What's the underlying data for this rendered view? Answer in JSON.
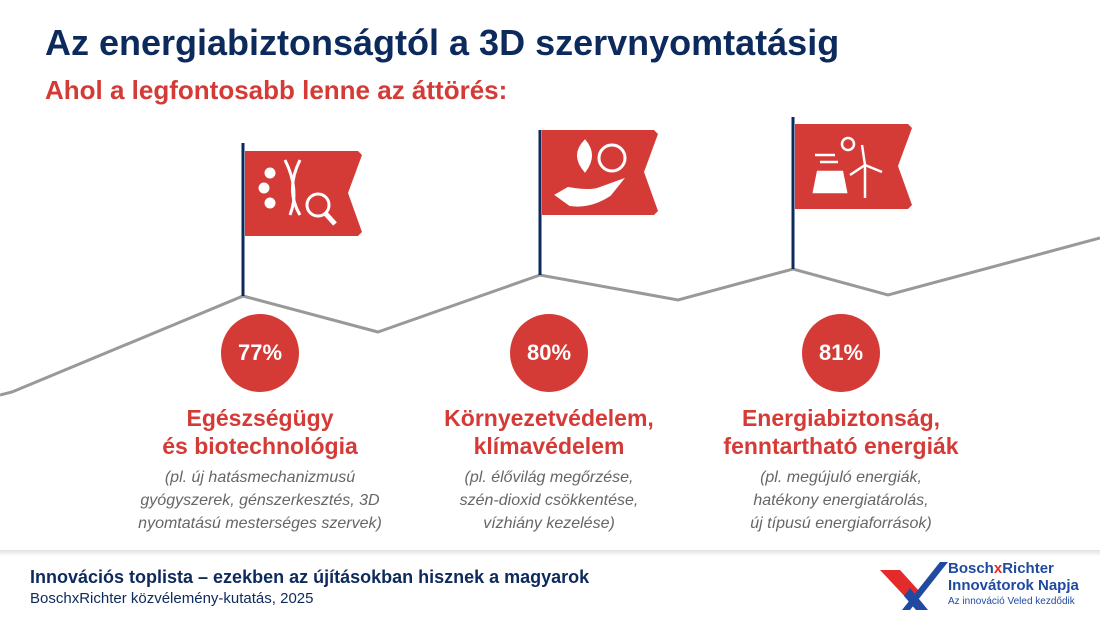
{
  "title": "Az energiabiztonságtól a 3D szervnyomtatásig",
  "subtitle": "Ahol a legfontosabb lenne az áttörés:",
  "items": [
    {
      "percent": "77%",
      "heading1": "Egészségügy",
      "heading2": "és biotechnológia",
      "desc": [
        "(pl. új hatásmechanizmusú",
        "gyógyszerek, génszerkesztés, 3D",
        "nyomtatású mesterséges szervek)"
      ],
      "icon": "dna-magnifier-icon"
    },
    {
      "percent": "80%",
      "heading1": "Környezetvédelem,",
      "heading2": "klímavédelem",
      "desc": [
        "(pl. élővilág megőrzése,",
        "szén-dioxid csökkentése,",
        "vízhiány kezelése)"
      ],
      "icon": "hand-leaf-globe-icon"
    },
    {
      "percent": "81%",
      "heading1": "Energiabiztonság,",
      "heading2": "fenntartható energiák",
      "desc": [
        "(pl. megújuló energiák,",
        "hatékony energiatárolás,",
        "új típusú energiaforrások)"
      ],
      "icon": "sun-wind-solar-icon"
    }
  ],
  "footer": {
    "title": "Innovációs toplista – ezekben az újításokban hisznek a magyarok",
    "source": "BoschxRichter közvélemény-kutatás, 2025"
  },
  "logo": {
    "line1a": "Bosch",
    "line1x": "x",
    "line1b": "Richter",
    "line2": "Innovátorok Napja",
    "tagline": "Az innováció Veled kezdődik"
  },
  "colors": {
    "navy": "#0d2a5c",
    "red": "#d43b37"
  }
}
